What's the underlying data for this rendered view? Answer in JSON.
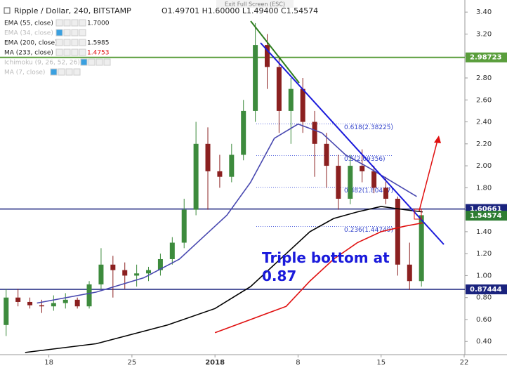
{
  "chart_data": {
    "type": "candlestick",
    "title": "Ripple / Dollar, 240, BITSTAMP",
    "ohlc_text": "O1.49701 H1.60000 L1.49400 C1.54574",
    "toolbar_text": "Exit Full Screen (ESC)",
    "annotation": [
      "Triple bottom at",
      "0.87"
    ],
    "xlim": [
      0,
      39
    ],
    "ylim": [
      0.28,
      3.51
    ],
    "xticks": [
      {
        "value": 4,
        "label": "18"
      },
      {
        "value": 11,
        "label": "25"
      },
      {
        "value": 18,
        "label": "2018"
      },
      {
        "value": 25,
        "label": "8"
      },
      {
        "value": 32,
        "label": "15"
      },
      {
        "value": 39,
        "label": "22"
      }
    ],
    "yticks": [
      {
        "value": 0.4,
        "label": "0.40"
      },
      {
        "value": 0.6,
        "label": "0.60"
      },
      {
        "value": 0.8,
        "label": "0.80"
      },
      {
        "value": 1.0,
        "label": "1.00"
      },
      {
        "value": 1.2,
        "label": "1.20"
      },
      {
        "value": 1.4,
        "label": "1.40"
      },
      {
        "value": 1.6,
        "label": "1.60"
      },
      {
        "value": 1.8,
        "label": "1.80"
      },
      {
        "value": 2.0,
        "label": "2.00"
      },
      {
        "value": 2.2,
        "label": "2.20"
      },
      {
        "value": 2.4,
        "label": "2.40"
      },
      {
        "value": 2.6,
        "label": "2.60"
      },
      {
        "value": 2.8,
        "label": "2.80"
      },
      {
        "value": 3.0,
        "label": "3.00"
      },
      {
        "value": 3.2,
        "label": "3.20"
      },
      {
        "value": 3.4,
        "label": "3.40"
      }
    ],
    "grid": false,
    "up_color": "#3d8b3d",
    "down_color": "#8b2020",
    "candles": {
      "x": [
        0.4,
        1.4,
        2.4,
        3.4,
        4.4,
        5.4,
        6.4,
        7.4,
        8.4,
        9.4,
        10.4,
        11.4,
        12.4,
        13.4,
        14.4,
        15.4,
        16.4,
        17.4,
        18.4,
        19.4,
        20.4,
        21.4,
        22.4,
        23.4,
        24.4,
        25.4,
        26.4,
        27.4,
        28.4,
        29.4,
        30.4,
        31.4,
        32.4,
        33.4,
        34.4,
        35.4
      ],
      "open": [
        0.55,
        0.8,
        0.76,
        0.73,
        0.72,
        0.75,
        0.78,
        0.72,
        0.92,
        1.1,
        1.05,
        1.0,
        1.02,
        1.05,
        1.15,
        1.3,
        1.6,
        2.2,
        1.95,
        1.9,
        2.1,
        2.5,
        3.1,
        2.9,
        2.5,
        2.7,
        2.4,
        2.2,
        2.0,
        1.7,
        2.0,
        1.95,
        1.8,
        1.7,
        1.1,
        0.95
      ],
      "high": [
        0.88,
        0.88,
        0.8,
        0.78,
        0.82,
        0.84,
        0.8,
        0.95,
        1.25,
        1.18,
        1.12,
        1.1,
        1.08,
        1.2,
        1.35,
        1.7,
        2.4,
        2.35,
        2.1,
        2.2,
        2.6,
        3.3,
        3.2,
        3.0,
        2.8,
        2.8,
        2.5,
        2.3,
        2.1,
        2.1,
        2.15,
        2.0,
        1.9,
        1.72,
        1.3,
        1.55
      ],
      "low": [
        0.45,
        0.72,
        0.7,
        0.66,
        0.68,
        0.7,
        0.7,
        0.7,
        0.88,
        0.8,
        0.88,
        0.9,
        0.95,
        1.0,
        1.1,
        1.25,
        1.55,
        1.6,
        1.8,
        1.85,
        2.05,
        2.4,
        2.7,
        2.3,
        2.2,
        2.3,
        1.9,
        1.8,
        1.6,
        1.65,
        1.85,
        1.75,
        1.65,
        1.0,
        0.87,
        0.9
      ],
      "close": [
        0.8,
        0.76,
        0.73,
        0.72,
        0.75,
        0.78,
        0.72,
        0.92,
        1.1,
        1.05,
        1.0,
        1.02,
        1.05,
        1.15,
        1.3,
        1.6,
        2.2,
        1.95,
        1.9,
        2.1,
        2.5,
        3.1,
        2.9,
        2.5,
        2.7,
        2.4,
        2.2,
        2.0,
        1.7,
        2.0,
        1.95,
        1.8,
        1.7,
        1.1,
        0.95,
        1.55
      ]
    },
    "series": [
      {
        "name": "EMA (55, close)",
        "color": "#4848b0",
        "last": {
          "value": 1.7,
          "label": "1.7000"
        },
        "x": [
          3,
          8,
          12,
          15,
          17,
          19,
          21,
          23,
          25,
          27,
          29,
          31,
          33,
          35
        ],
        "values": [
          0.75,
          0.85,
          0.98,
          1.15,
          1.35,
          1.55,
          1.85,
          2.25,
          2.38,
          2.3,
          2.1,
          1.98,
          1.85,
          1.72
        ]
      },
      {
        "name": "EMA (200, close)",
        "color": "#000000",
        "last": {
          "value": 1.5985,
          "label": "1.5985"
        },
        "x": [
          2,
          8,
          14,
          18,
          21,
          24,
          26,
          28,
          30,
          32,
          34,
          35.5
        ],
        "values": [
          0.3,
          0.38,
          0.55,
          0.7,
          0.9,
          1.2,
          1.4,
          1.52,
          1.58,
          1.63,
          1.6,
          1.58
        ]
      },
      {
        "name": "MA (233, close)",
        "color": "#e01010",
        "last": {
          "value": 1.4753,
          "label": "1.4753"
        },
        "x": [
          18,
          21,
          24,
          26,
          28,
          30,
          32,
          34,
          35.5
        ],
        "values": [
          0.48,
          0.6,
          0.72,
          0.95,
          1.15,
          1.3,
          1.4,
          1.45,
          1.48
        ]
      }
    ],
    "inactive_indicators": [
      "EMA (34, close)",
      "Ichimoku (9, 26, 52, 26)",
      "MA (7, close)"
    ],
    "price_lines": [
      {
        "value": 2.98723,
        "color": "#5a9e3c"
      },
      {
        "value": 1.60661,
        "color": "#1a237e"
      },
      {
        "value": 0.87444,
        "color": "#1a237e"
      }
    ],
    "last_price": {
      "value": 1.54574,
      "color": "#2e7d32"
    },
    "fib_levels": [
      {
        "value": 2.38225,
        "label": "0.618(2.38225)"
      },
      {
        "value": 2.09356,
        "label": "0.5(2.09356)"
      },
      {
        "value": 1.80487,
        "label": "0.382(1.80487)"
      },
      {
        "value": 1.44749,
        "label": "0.236(1.44749)"
      }
    ]
  }
}
